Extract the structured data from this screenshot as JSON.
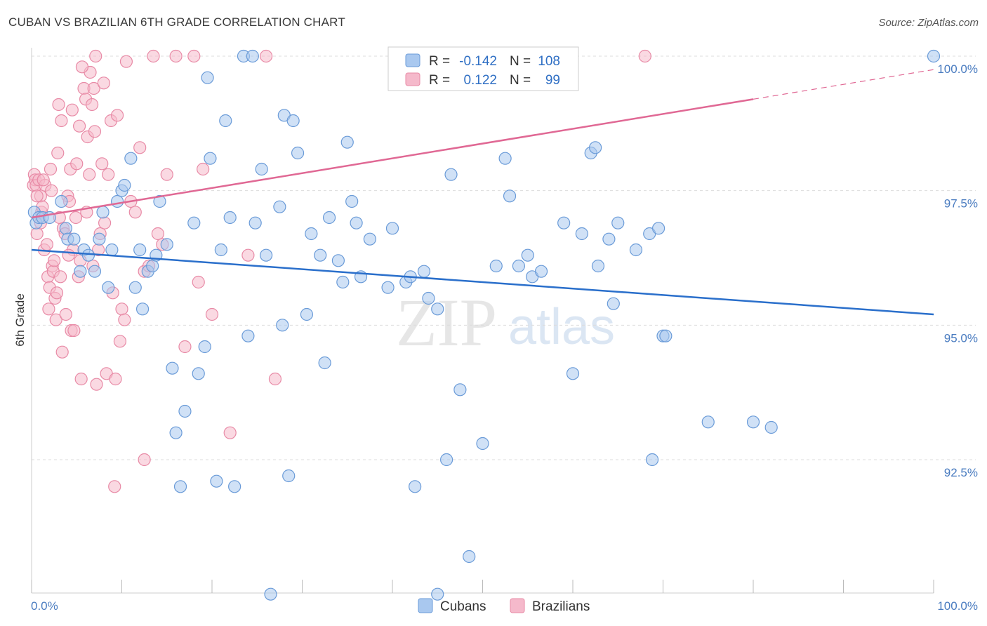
{
  "title": "CUBAN VS BRAZILIAN 6TH GRADE CORRELATION CHART",
  "source": "Source: ZipAtlas.com",
  "watermark": {
    "zip": "ZIP",
    "atlas": "atlas"
  },
  "colors": {
    "cubans_fill": "#a9c8ef",
    "cubans_stroke": "#6a9bd8",
    "cubans_line": "#2a6fcb",
    "brazilians_fill": "#f5b9cb",
    "brazilians_stroke": "#e88aa6",
    "brazilians_line": "#e06894",
    "tick_label": "#4a7cc0",
    "grid": "#dcdcdc"
  },
  "legend": {
    "r_label": "R =",
    "n_label": "N =",
    "cubans": {
      "r": "-0.142",
      "n": "108"
    },
    "brazilians": {
      "r": "0.122",
      "n": "99"
    }
  },
  "chart_data": {
    "type": "scatter",
    "xlabel": "",
    "ylabel": "6th Grade",
    "xlim": [
      0,
      100
    ],
    "ylim": [
      90.0,
      100.4
    ],
    "x_tick_labels": [
      "0.0%",
      "100.0%"
    ],
    "y_ticks": [
      92.5,
      95.0,
      97.5,
      100.0
    ],
    "y_tick_labels": [
      "92.5%",
      "95.0%",
      "97.5%",
      "100.0%"
    ],
    "series": [
      {
        "name": "Cubans",
        "trend": {
          "x0": 0,
          "y0": 96.4,
          "x1": 100,
          "y1": 95.2
        },
        "points": [
          [
            0.3,
            97.1
          ],
          [
            0.5,
            96.9
          ],
          [
            0.8,
            97.0
          ],
          [
            1.2,
            97.0
          ],
          [
            2.0,
            97.0
          ],
          [
            3.3,
            97.3
          ],
          [
            3.8,
            96.8
          ],
          [
            4.0,
            96.6
          ],
          [
            4.7,
            96.6
          ],
          [
            5.4,
            96.0
          ],
          [
            5.8,
            96.4
          ],
          [
            6.3,
            96.3
          ],
          [
            7.0,
            96.0
          ],
          [
            7.5,
            96.6
          ],
          [
            7.9,
            97.1
          ],
          [
            8.5,
            95.7
          ],
          [
            8.9,
            96.4
          ],
          [
            9.5,
            97.3
          ],
          [
            10.0,
            97.5
          ],
          [
            10.3,
            97.6
          ],
          [
            11.0,
            98.1
          ],
          [
            11.5,
            95.7
          ],
          [
            12.0,
            96.4
          ],
          [
            12.3,
            95.3
          ],
          [
            12.9,
            96.0
          ],
          [
            13.4,
            96.1
          ],
          [
            13.8,
            96.3
          ],
          [
            14.2,
            97.3
          ],
          [
            15.0,
            96.5
          ],
          [
            15.6,
            94.2
          ],
          [
            16.0,
            93.0
          ],
          [
            16.5,
            92.0
          ],
          [
            17.0,
            93.4
          ],
          [
            18.0,
            96.9
          ],
          [
            18.5,
            94.1
          ],
          [
            19.2,
            94.6
          ],
          [
            19.5,
            99.6
          ],
          [
            19.8,
            98.1
          ],
          [
            20.5,
            92.1
          ],
          [
            21.0,
            96.4
          ],
          [
            21.5,
            98.8
          ],
          [
            22.0,
            97.0
          ],
          [
            22.5,
            92.0
          ],
          [
            23.5,
            100.0
          ],
          [
            24.5,
            100.0
          ],
          [
            24.0,
            94.8
          ],
          [
            24.8,
            96.9
          ],
          [
            25.5,
            97.9
          ],
          [
            26.0,
            96.3
          ],
          [
            27.5,
            97.2
          ],
          [
            27.8,
            95.0
          ],
          [
            28.0,
            98.9
          ],
          [
            28.5,
            92.2
          ],
          [
            29.0,
            98.8
          ],
          [
            29.5,
            98.2
          ],
          [
            30.5,
            95.2
          ],
          [
            31.0,
            96.7
          ],
          [
            32.0,
            96.3
          ],
          [
            32.5,
            94.3
          ],
          [
            33.0,
            97.0
          ],
          [
            34.0,
            96.2
          ],
          [
            34.5,
            95.8
          ],
          [
            35.0,
            98.4
          ],
          [
            35.5,
            97.3
          ],
          [
            36.0,
            96.9
          ],
          [
            36.5,
            95.9
          ],
          [
            37.5,
            96.6
          ],
          [
            39.5,
            95.7
          ],
          [
            40.0,
            96.8
          ],
          [
            41.5,
            95.8
          ],
          [
            42.0,
            95.9
          ],
          [
            42.5,
            92.0
          ],
          [
            43.5,
            96.0
          ],
          [
            44.0,
            95.5
          ],
          [
            45.0,
            95.3
          ],
          [
            46.0,
            92.5
          ],
          [
            46.5,
            97.8
          ],
          [
            47.5,
            93.8
          ],
          [
            48.5,
            90.7
          ],
          [
            50.0,
            92.8
          ],
          [
            51.5,
            96.1
          ],
          [
            52.5,
            98.1
          ],
          [
            53.0,
            97.4
          ],
          [
            54.0,
            96.1
          ],
          [
            55.0,
            96.3
          ],
          [
            55.5,
            95.9
          ],
          [
            56.5,
            96.0
          ],
          [
            59.0,
            96.9
          ],
          [
            61.0,
            96.7
          ],
          [
            62.0,
            98.2
          ],
          [
            62.5,
            98.3
          ],
          [
            62.8,
            96.1
          ],
          [
            64.0,
            96.6
          ],
          [
            64.5,
            95.4
          ],
          [
            65.0,
            96.9
          ],
          [
            67.0,
            96.4
          ],
          [
            68.5,
            96.7
          ],
          [
            68.8,
            92.5
          ],
          [
            69.5,
            96.8
          ],
          [
            70.0,
            94.8
          ],
          [
            70.3,
            94.8
          ],
          [
            75.0,
            93.2
          ],
          [
            80.0,
            93.2
          ],
          [
            82.0,
            93.1
          ],
          [
            100.0,
            100.0
          ],
          [
            26.5,
            90.0
          ],
          [
            45.0,
            90.0
          ],
          [
            60.0,
            94.1
          ]
        ]
      },
      {
        "name": "Brazilians",
        "trend": {
          "x0": 0,
          "y0": 97.0,
          "x1": 80,
          "y1": 99.2
        },
        "trend_dashed": {
          "x0": 80,
          "y0": 99.2,
          "x1": 100,
          "y1": 99.75
        },
        "points": [
          [
            0.2,
            97.6
          ],
          [
            0.3,
            97.8
          ],
          [
            0.4,
            97.7
          ],
          [
            0.5,
            97.6
          ],
          [
            0.6,
            96.7
          ],
          [
            0.8,
            97.7
          ],
          [
            1.0,
            97.4
          ],
          [
            1.1,
            97.1
          ],
          [
            1.2,
            97.2
          ],
          [
            1.4,
            96.4
          ],
          [
            1.5,
            97.6
          ],
          [
            1.7,
            96.5
          ],
          [
            1.8,
            95.9
          ],
          [
            2.0,
            95.7
          ],
          [
            2.1,
            97.9
          ],
          [
            2.3,
            96.1
          ],
          [
            2.4,
            96.0
          ],
          [
            2.6,
            95.5
          ],
          [
            2.7,
            95.1
          ],
          [
            2.9,
            98.2
          ],
          [
            3.0,
            99.1
          ],
          [
            3.2,
            95.9
          ],
          [
            3.4,
            94.5
          ],
          [
            3.5,
            96.8
          ],
          [
            3.7,
            96.7
          ],
          [
            3.8,
            95.2
          ],
          [
            4.0,
            97.4
          ],
          [
            4.2,
            97.3
          ],
          [
            4.3,
            97.9
          ],
          [
            4.4,
            94.9
          ],
          [
            4.6,
            96.4
          ],
          [
            4.7,
            94.9
          ],
          [
            4.9,
            97.0
          ],
          [
            5.0,
            98.0
          ],
          [
            5.2,
            95.9
          ],
          [
            5.4,
            96.2
          ],
          [
            5.5,
            94.0
          ],
          [
            5.8,
            99.4
          ],
          [
            6.0,
            99.2
          ],
          [
            6.2,
            98.5
          ],
          [
            6.4,
            97.8
          ],
          [
            6.5,
            99.7
          ],
          [
            6.7,
            99.1
          ],
          [
            6.9,
            99.4
          ],
          [
            7.0,
            98.6
          ],
          [
            7.2,
            93.9
          ],
          [
            7.4,
            96.4
          ],
          [
            7.6,
            96.7
          ],
          [
            7.8,
            98.0
          ],
          [
            8.0,
            99.5
          ],
          [
            8.3,
            94.1
          ],
          [
            8.5,
            97.8
          ],
          [
            8.8,
            98.8
          ],
          [
            9.0,
            95.6
          ],
          [
            9.3,
            94.0
          ],
          [
            9.5,
            98.9
          ],
          [
            9.8,
            94.7
          ],
          [
            10.0,
            95.3
          ],
          [
            10.3,
            95.1
          ],
          [
            10.5,
            99.9
          ],
          [
            11.0,
            97.3
          ],
          [
            11.5,
            97.1
          ],
          [
            12.0,
            98.3
          ],
          [
            12.5,
            96.0
          ],
          [
            13.0,
            96.1
          ],
          [
            13.5,
            100.0
          ],
          [
            14.0,
            96.7
          ],
          [
            14.5,
            96.5
          ],
          [
            15.0,
            97.8
          ],
          [
            16.0,
            100.0
          ],
          [
            17.0,
            94.6
          ],
          [
            18.0,
            100.0
          ],
          [
            18.5,
            95.8
          ],
          [
            19.0,
            97.9
          ],
          [
            20.0,
            95.2
          ],
          [
            22.0,
            93.0
          ],
          [
            24.0,
            96.3
          ],
          [
            26.0,
            100.0
          ],
          [
            27.0,
            94.0
          ],
          [
            68.0,
            100.0
          ],
          [
            12.5,
            92.5
          ],
          [
            9.2,
            92.0
          ],
          [
            1.0,
            96.9
          ],
          [
            2.2,
            97.5
          ],
          [
            3.1,
            97.0
          ],
          [
            4.1,
            96.3
          ],
          [
            5.6,
            99.8
          ],
          [
            6.8,
            96.1
          ],
          [
            7.1,
            100.0
          ],
          [
            8.1,
            96.9
          ],
          [
            0.6,
            97.4
          ],
          [
            1.3,
            97.7
          ],
          [
            1.9,
            95.3
          ],
          [
            2.5,
            96.2
          ],
          [
            3.3,
            98.8
          ],
          [
            4.5,
            99.0
          ],
          [
            5.3,
            98.7
          ],
          [
            6.1,
            97.1
          ],
          [
            2.8,
            95.6
          ]
        ]
      }
    ]
  },
  "bottom_legend": {
    "cubans": "Cubans",
    "brazilians": "Brazilians"
  }
}
